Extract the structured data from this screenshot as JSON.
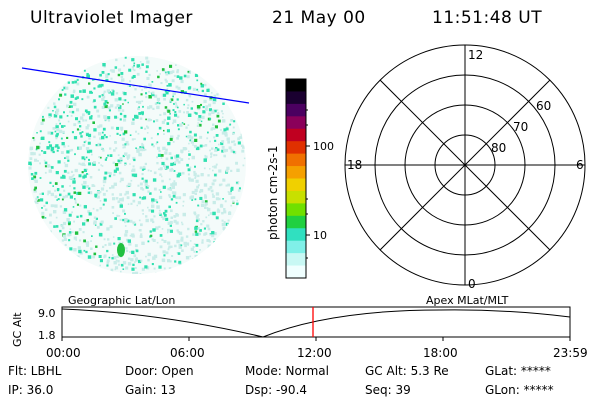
{
  "header": {
    "instrument": "Ultraviolet Imager",
    "date": "21 May 00",
    "time": "11:51:48 UT"
  },
  "colorbar": {
    "unit_label": "photon cm-2s-1",
    "ticks": [
      "100",
      "10"
    ],
    "colors": [
      "#000000",
      "#1a0030",
      "#4b0060",
      "#8a005a",
      "#c00020",
      "#e03000",
      "#f07000",
      "#f5a000",
      "#f0d000",
      "#c8e000",
      "#70e000",
      "#20d040",
      "#30e0c0",
      "#80f0e8",
      "#c8f8f4",
      "#f0ffff"
    ]
  },
  "polar_plot": {
    "mlt_labels": {
      "top": "12",
      "left": "18",
      "right": "6",
      "bottom": "0"
    },
    "lat_labels": [
      "60",
      "70",
      "80"
    ]
  },
  "timeline": {
    "left_title": "Geographic Lat/Lon",
    "right_title": "Apex MLat/MLT",
    "axis_title": "GC Alt",
    "y_ticks": [
      "9.0",
      "1.8"
    ],
    "x_ticks": [
      "00:00",
      "06:00",
      "12:00",
      "18:00",
      "23:59"
    ],
    "marker_color": "#ff0000"
  },
  "status": {
    "row1": {
      "flt": "Flt: LBHL",
      "door": "Door: Open",
      "mode": "Mode: Normal",
      "gcalt": "GC Alt: 5.3 Re",
      "glat": "GLat: *****"
    },
    "row2": {
      "ip": "IP: 36.0",
      "gain": "Gain: 13",
      "dsp": "Dsp:  -90.4",
      "seq": "Seq: 39",
      "glon": "GLon: *****"
    }
  },
  "colors": {
    "terminator_line": "#0000ff",
    "emission_main": "#30e0b0",
    "emission_bright": "#20c040",
    "emission_faint": "#c8ece8"
  }
}
